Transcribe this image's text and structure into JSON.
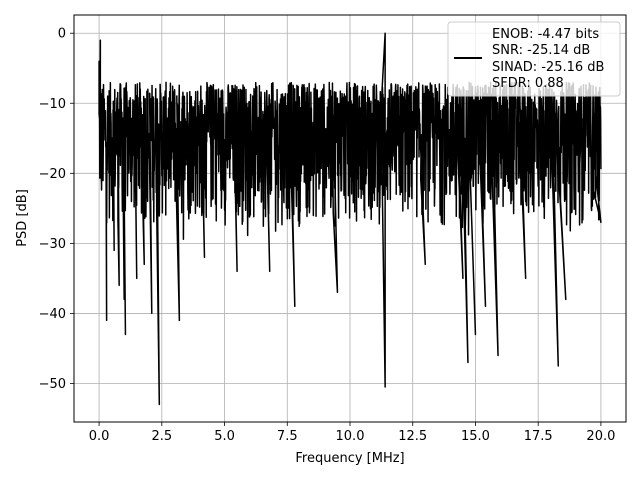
{
  "chart_data": {
    "type": "line",
    "xlabel": "Frequency [MHz]",
    "ylabel": "PSD [dB]",
    "xlim": [
      -1.0,
      21.0
    ],
    "ylim": [
      -55.5,
      2.6
    ],
    "xticks": [
      0.0,
      2.5,
      5.0,
      7.5,
      10.0,
      12.5,
      15.0,
      17.5,
      20.0
    ],
    "xtick_labels": [
      "0.0",
      "2.5",
      "5.0",
      "7.5",
      "10.0",
      "12.5",
      "15.0",
      "17.5",
      "20.0"
    ],
    "yticks": [
      0,
      -10,
      -20,
      -30,
      -40,
      -50
    ],
    "ytick_labels": [
      "0",
      "−10",
      "−20",
      "−30",
      "−40",
      "−50"
    ],
    "grid": true,
    "legend_position": "top-right",
    "line_color": "#000000",
    "legend": {
      "lines": [
        "ENOB: -4.47 bits",
        "SNR: -25.14 dB",
        "SINAD: -25.16 dB",
        "SFDR: 0.88"
      ]
    },
    "series": [
      {
        "x_start": 0.0,
        "x_end": 20.0,
        "typical_band": [
          -28,
          -7
        ],
        "points": [
          {
            "x": 0.0,
            "y": -4
          },
          {
            "x": 0.05,
            "y": -1
          },
          {
            "x": 0.1,
            "y": -22
          },
          {
            "x": 0.3,
            "y": -41
          },
          {
            "x": 0.6,
            "y": -31
          },
          {
            "x": 0.8,
            "y": -36
          },
          {
            "x": 1.0,
            "y": -38
          },
          {
            "x": 1.05,
            "y": -43
          },
          {
            "x": 1.5,
            "y": -35
          },
          {
            "x": 1.8,
            "y": -33
          },
          {
            "x": 2.1,
            "y": -40
          },
          {
            "x": 2.4,
            "y": -53
          },
          {
            "x": 3.2,
            "y": -41
          },
          {
            "x": 4.2,
            "y": -32
          },
          {
            "x": 5.5,
            "y": -34
          },
          {
            "x": 6.8,
            "y": -34
          },
          {
            "x": 7.8,
            "y": -39
          },
          {
            "x": 9.5,
            "y": -37
          },
          {
            "x": 11.4,
            "y": -50.5
          },
          {
            "x": 11.4,
            "y": 0
          },
          {
            "x": 13.0,
            "y": -33
          },
          {
            "x": 14.5,
            "y": -35
          },
          {
            "x": 14.7,
            "y": -47
          },
          {
            "x": 15.0,
            "y": -43
          },
          {
            "x": 15.4,
            "y": -39
          },
          {
            "x": 15.9,
            "y": -46
          },
          {
            "x": 17.0,
            "y": -35
          },
          {
            "x": 18.3,
            "y": -47.5
          },
          {
            "x": 18.6,
            "y": -38
          },
          {
            "x": 20.0,
            "y": -27
          }
        ]
      }
    ]
  }
}
